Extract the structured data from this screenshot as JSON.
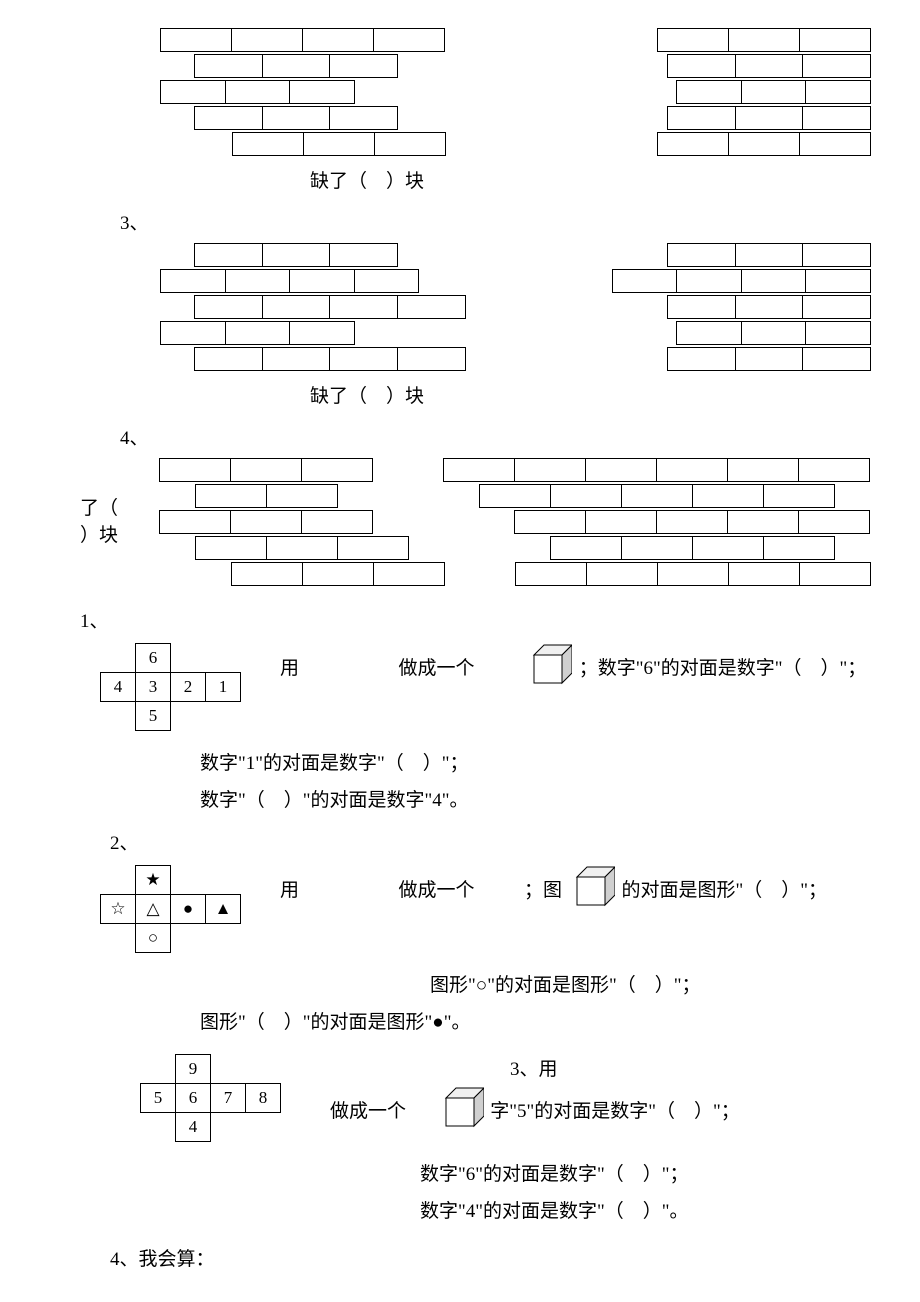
{
  "walls": {
    "wall_a": {
      "caption": "缺了（　）块",
      "rows": [
        {
          "offset": 0,
          "bricks": [
            "f",
            "f",
            "f",
            "f",
            "e",
            "e",
            "e",
            "f",
            "f",
            "f"
          ]
        },
        {
          "offset": 0.5,
          "bricks": [
            "f",
            "f",
            "f",
            "e",
            "e",
            "e",
            "e",
            "f",
            "f",
            "f"
          ]
        },
        {
          "offset": 0,
          "bricks": [
            "f",
            "f",
            "f",
            "e",
            "e",
            "e",
            "e",
            "e",
            "f",
            "f",
            "f"
          ]
        },
        {
          "offset": 0.5,
          "bricks": [
            "f",
            "f",
            "f",
            "e",
            "e",
            "e",
            "e",
            "f",
            "f",
            "f"
          ]
        },
        {
          "offset": 1,
          "bricks": [
            "f",
            "f",
            "f",
            "e",
            "e",
            "e",
            "f",
            "f",
            "f"
          ]
        }
      ]
    },
    "wall_b": {
      "prefix": "3、",
      "caption": "缺了（　）块",
      "rows": [
        {
          "offset": 0.5,
          "bricks": [
            "f",
            "f",
            "f",
            "e",
            "e",
            "e",
            "e",
            "f",
            "f",
            "f"
          ]
        },
        {
          "offset": 0,
          "bricks": [
            "f",
            "f",
            "f",
            "f",
            "e",
            "e",
            "e",
            "f",
            "f",
            "f",
            "f"
          ]
        },
        {
          "offset": 0.5,
          "bricks": [
            "f",
            "f",
            "f",
            "f",
            "e",
            "e",
            "e",
            "f",
            "f",
            "f"
          ]
        },
        {
          "offset": 0,
          "bricks": [
            "f",
            "f",
            "f",
            "e",
            "e",
            "e",
            "e",
            "e",
            "f",
            "f",
            "f"
          ]
        },
        {
          "offset": 0.5,
          "bricks": [
            "f",
            "f",
            "f",
            "f",
            "e",
            "e",
            "e",
            "f",
            "f",
            "f"
          ]
        }
      ]
    },
    "wall_c": {
      "prefix": "4、",
      "left_text_1": "了（",
      "left_text_2": "）块",
      "rows": [
        {
          "offset": 0,
          "bricks": [
            "f",
            "f",
            "f",
            "e",
            "f",
            "f",
            "f",
            "f",
            "f",
            "f"
          ]
        },
        {
          "offset": 0.5,
          "bricks": [
            "f",
            "f",
            "e",
            "e",
            "f",
            "f",
            "f",
            "f",
            "f"
          ]
        },
        {
          "offset": 0,
          "bricks": [
            "f",
            "f",
            "f",
            "e",
            "e",
            "f",
            "f",
            "f",
            "f",
            "f"
          ]
        },
        {
          "offset": 0.5,
          "bricks": [
            "f",
            "f",
            "f",
            "e",
            "e",
            "f",
            "f",
            "f",
            "f"
          ]
        },
        {
          "offset": 1,
          "bricks": [
            "f",
            "f",
            "f",
            "e",
            "f",
            "f",
            "f",
            "f",
            "f"
          ]
        }
      ]
    }
  },
  "q1": {
    "prefix": "1、",
    "net": {
      "cells": [
        {
          "row": 0,
          "col": 1,
          "val": "6"
        },
        {
          "row": 1,
          "col": 0,
          "val": "4"
        },
        {
          "row": 1,
          "col": 1,
          "val": "3"
        },
        {
          "row": 1,
          "col": 2,
          "val": "2"
        },
        {
          "row": 1,
          "col": 3,
          "val": "1"
        },
        {
          "row": 2,
          "col": 1,
          "val": "5"
        }
      ],
      "cols": 4,
      "rows": 3
    },
    "line1a": "用",
    "line1b": "做成一个",
    "line1c": "；数字\"6\"的对面是数字\"（　）\"；",
    "line2": "数字\"1\"的对面是数字\"（　）\"；",
    "line3": "数字\"（　）\"的对面是数字\"4\"。"
  },
  "q2": {
    "prefix": "2、",
    "net": {
      "cells": [
        {
          "row": 0,
          "col": 1,
          "val": "★"
        },
        {
          "row": 1,
          "col": 0,
          "val": "☆"
        },
        {
          "row": 1,
          "col": 1,
          "val": "△"
        },
        {
          "row": 1,
          "col": 2,
          "val": "●"
        },
        {
          "row": 1,
          "col": 3,
          "val": "▲"
        },
        {
          "row": 2,
          "col": 1,
          "val": "○"
        }
      ],
      "cols": 4,
      "rows": 3
    },
    "line1a": "用",
    "line1b": "做成一个",
    "line1c": "；图",
    "line1d": "的对面是图形\"（　）\"；",
    "line2": "图形\"○\"的对面是图形\"（　）\"；",
    "line3": "图形\"（　）\"的对面是图形\"●\"。"
  },
  "q3": {
    "prefix": "3、用",
    "net": {
      "cells": [
        {
          "row": 0,
          "col": 1,
          "val": "9"
        },
        {
          "row": 1,
          "col": 0,
          "val": "5"
        },
        {
          "row": 1,
          "col": 1,
          "val": "6"
        },
        {
          "row": 1,
          "col": 2,
          "val": "7"
        },
        {
          "row": 1,
          "col": 3,
          "val": "8"
        },
        {
          "row": 2,
          "col": 1,
          "val": "4"
        }
      ],
      "cols": 4,
      "rows": 3
    },
    "line1a": "做成一个",
    "line1b": "字\"5\"的对面是数字\"（　）\"；",
    "line2": "数字\"6\"的对面是数字\"（　）\"；",
    "line3": "数字\"4\"的对面是数字\"（　）\"。"
  },
  "q4": {
    "text": "4、我会算："
  },
  "cube_svg": {
    "stroke": "#000",
    "fill_front": "#ffffff",
    "fill_side": "#d0d0d0",
    "fill_top": "#f0f0f0"
  }
}
